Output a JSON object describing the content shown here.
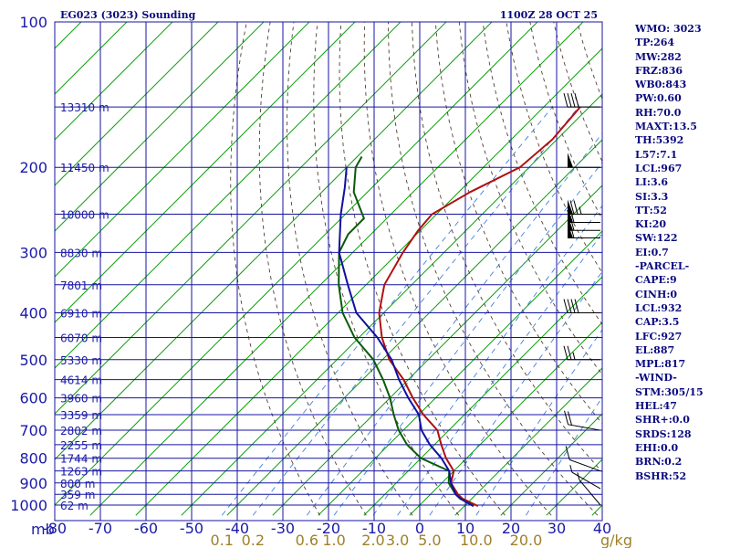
{
  "header": {
    "station": "EG023 (3023) Sounding",
    "valid_time": "1100Z 28 OCT 25"
  },
  "indices": [
    "WMO: 3023",
    "TP:264",
    "MW:282",
    "FRZ:836",
    "WB0:843",
    "PW:0.60",
    "RH:70.0",
    "MAXT:13.5",
    "TH:5392",
    "L57:7.1",
    "LCL:967",
    "LI:3.6",
    "SI:3.3",
    "TT:52",
    "KI:20",
    "SW:122",
    "EI:0.7",
    "-PARCEL-",
    "CAPE:9",
    "CINH:0",
    "LCL:932",
    "CAP:3.5",
    "LFC:927",
    "EL:887",
    "MPL:817",
    "-WIND-",
    "STM:305/15",
    "HEL:47",
    "SHR+:0.0",
    "SRDS:128",
    "EHI:0.0",
    "BRN:0.2",
    "BSHR:52"
  ],
  "colors": {
    "grid": "#1414a0",
    "isotherm": "#10a010",
    "temperature": "#b01010",
    "dewpoint": "#0a5a0a",
    "parcel": "#1010a0",
    "dry_adiabat": "#504030",
    "mixing_ratio": "#4080e0",
    "label": "#1a1aa8",
    "mix_label": "#a08028",
    "wind": "#000000"
  },
  "chart_data": {
    "type": "line",
    "title": "EG023 (3023) Sounding",
    "subtitle": "1100Z 28 OCT 25",
    "pressure_unit": "mb",
    "pressure_levels": [
      100,
      200,
      300,
      400,
      500,
      600,
      700,
      800,
      900,
      1000
    ],
    "pressure_range": [
      100,
      1050
    ],
    "temperature_ticks": [
      -80,
      -70,
      -60,
      -50,
      -40,
      -30,
      -20,
      -10,
      0,
      10,
      20,
      30,
      40
    ],
    "temperature_tick_labels": [
      "-80",
      "-70",
      "-60",
      "-50",
      "-40",
      "-30",
      "-20",
      "-10",
      "0",
      "10",
      "20",
      "30",
      "40"
    ],
    "temperature_range_at_bottom": [
      -80,
      40
    ],
    "mixing_ratio_label": "g/kg",
    "mixing_ratios": [
      0.1,
      0.2,
      0.6,
      1.0,
      2.0,
      3.0,
      5.0,
      10.0,
      20.0
    ],
    "mixing_ratio_labels": [
      "0.1",
      "0.2",
      "0.6",
      "1.0",
      "2.0",
      "3.0",
      "5.0",
      "10.0",
      "20.0"
    ],
    "heights": [
      {
        "p": 150,
        "label": "13310 m"
      },
      {
        "p": 200,
        "label": "11450 m"
      },
      {
        "p": 250,
        "label": "10000 m"
      },
      {
        "p": 300,
        "label": "8830 m"
      },
      {
        "p": 350,
        "label": "7801 m"
      },
      {
        "p": 400,
        "label": "6910 m"
      },
      {
        "p": 450,
        "label": "6070 m"
      },
      {
        "p": 500,
        "label": "5330 m"
      },
      {
        "p": 550,
        "label": "4614 m"
      },
      {
        "p": 600,
        "label": "3960 m"
      },
      {
        "p": 650,
        "label": "3359 m"
      },
      {
        "p": 700,
        "label": "2802 m"
      },
      {
        "p": 750,
        "label": "2255 m"
      },
      {
        "p": 800,
        "label": "1744 m"
      },
      {
        "p": 850,
        "label": "1263 m"
      },
      {
        "p": 900,
        "label": "800 m"
      },
      {
        "p": 950,
        "label": "359 m"
      },
      {
        "p": 1000,
        "label": "62 m"
      }
    ],
    "series": [
      {
        "name": "Temperature",
        "points": [
          [
            1005,
            13.0
          ],
          [
            970,
            8.0
          ],
          [
            950,
            6.0
          ],
          [
            900,
            2.0
          ],
          [
            850,
            0.0
          ],
          [
            800,
            -4.5
          ],
          [
            750,
            -8.5
          ],
          [
            700,
            -12.5
          ],
          [
            650,
            -19.0
          ],
          [
            600,
            -25.0
          ],
          [
            550,
            -31.0
          ],
          [
            500,
            -38.5
          ],
          [
            450,
            -45.0
          ],
          [
            400,
            -51.0
          ],
          [
            350,
            -56.0
          ],
          [
            300,
            -59.0
          ],
          [
            270,
            -60.5
          ],
          [
            250,
            -61.0
          ],
          [
            225,
            -57.5
          ],
          [
            200,
            -52.0
          ],
          [
            175,
            -51.0
          ],
          [
            150,
            -52.0
          ]
        ]
      },
      {
        "name": "Dewpoint",
        "points": [
          [
            1005,
            12.0
          ],
          [
            970,
            7.5
          ],
          [
            950,
            5.5
          ],
          [
            900,
            1.5
          ],
          [
            850,
            -1.0
          ],
          [
            800,
            -10.0
          ],
          [
            750,
            -16.0
          ],
          [
            700,
            -21.0
          ],
          [
            650,
            -25.5
          ],
          [
            600,
            -30.0
          ],
          [
            550,
            -35.5
          ],
          [
            500,
            -42.0
          ],
          [
            450,
            -51.0
          ],
          [
            400,
            -59.0
          ],
          [
            350,
            -66.0
          ],
          [
            300,
            -73.0
          ],
          [
            275,
            -75.0
          ],
          [
            255,
            -75.0
          ],
          [
            225,
            -83.0
          ],
          [
            200,
            -88.0
          ],
          [
            190,
            -89.0
          ]
        ]
      },
      {
        "name": "Parcel",
        "points": [
          [
            1005,
            12.0
          ],
          [
            970,
            7.5
          ],
          [
            950,
            5.5
          ],
          [
            900,
            2.0
          ],
          [
            850,
            -1.0
          ],
          [
            800,
            -5.5
          ],
          [
            750,
            -11.0
          ],
          [
            700,
            -16.0
          ],
          [
            650,
            -20.0
          ],
          [
            600,
            -26.0
          ],
          [
            550,
            -32.0
          ],
          [
            500,
            -38.0
          ],
          [
            450,
            -46.0
          ],
          [
            400,
            -56.0
          ],
          [
            350,
            -64.0
          ],
          [
            300,
            -73.0
          ],
          [
            250,
            -81.0
          ],
          [
            220,
            -86.0
          ],
          [
            200,
            -90.0
          ]
        ]
      }
    ],
    "wind_barbs": [
      {
        "p": 150,
        "direction": 270,
        "speed": 40
      },
      {
        "p": 200,
        "direction": 270,
        "speed": 50
      },
      {
        "p": 250,
        "direction": 270,
        "speed": 75
      },
      {
        "p": 260,
        "direction": 270,
        "speed": 60
      },
      {
        "p": 270,
        "direction": 270,
        "speed": 60
      },
      {
        "p": 280,
        "direction": 270,
        "speed": 60
      },
      {
        "p": 400,
        "direction": 270,
        "speed": 40
      },
      {
        "p": 500,
        "direction": 270,
        "speed": 25
      },
      {
        "p": 700,
        "direction": 280,
        "speed": 20
      },
      {
        "p": 850,
        "direction": 290,
        "speed": 10
      },
      {
        "p": 925,
        "direction": 300,
        "speed": 5
      },
      {
        "p": 1000,
        "direction": 320,
        "speed": 5
      }
    ]
  }
}
